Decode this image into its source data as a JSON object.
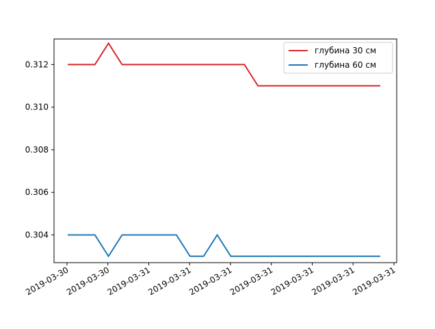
{
  "chart_data": {
    "type": "line",
    "title": "",
    "xlabel": "",
    "ylabel": "",
    "ylim": [
      0.3027,
      0.3132
    ],
    "yticks": [
      0.304,
      0.306,
      0.308,
      0.31,
      0.312
    ],
    "ytick_labels": [
      "0.304",
      "0.306",
      "0.308",
      "0.310",
      "0.312"
    ],
    "xtick_labels": [
      "2019-03-30",
      "2019-03-30",
      "2019-03-31",
      "2019-03-31",
      "2019-03-31",
      "2019-03-31",
      "2019-03-31",
      "2019-03-31",
      "2019-03-31"
    ],
    "grid": false,
    "legend_position": "top-right",
    "series": [
      {
        "name": "глубина 30 см",
        "color": "#d62728",
        "values": [
          0.312,
          0.312,
          0.312,
          0.313,
          0.312,
          0.312,
          0.312,
          0.312,
          0.312,
          0.312,
          0.312,
          0.312,
          0.312,
          0.312,
          0.311,
          0.311,
          0.311,
          0.311,
          0.311,
          0.311,
          0.311,
          0.311,
          0.311,
          0.311
        ]
      },
      {
        "name": "глубина 60 см",
        "color": "#1f77b4",
        "values": [
          0.304,
          0.304,
          0.304,
          0.303,
          0.304,
          0.304,
          0.304,
          0.304,
          0.304,
          0.303,
          0.303,
          0.304,
          0.303,
          0.303,
          0.303,
          0.303,
          0.303,
          0.303,
          0.303,
          0.303,
          0.303,
          0.303,
          0.303,
          0.303
        ]
      }
    ]
  }
}
